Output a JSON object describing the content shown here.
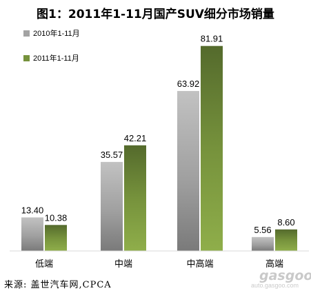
{
  "chart_data": {
    "type": "bar",
    "title": "图1：2011年1-11月国产SUV细分市场销量",
    "categories": [
      "低端",
      "中端",
      "中高端",
      "高端"
    ],
    "series": [
      {
        "name": "2010年1-11月",
        "values": [
          13.4,
          35.57,
          63.92,
          5.56
        ],
        "color": "#a3a3a3"
      },
      {
        "name": "2011年1-11月",
        "values": [
          10.38,
          42.21,
          81.91,
          8.6
        ],
        "color": "#76923c"
      }
    ],
    "value_labels": [
      [
        "13.40",
        "35.57",
        "63.92",
        "5.56"
      ],
      [
        "10.38",
        "42.21",
        "81.91",
        "8.60"
      ]
    ],
    "ylim": [
      0,
      85
    ],
    "grid": false,
    "legend_position": "top-left"
  },
  "source": "来源: 盖世汽车网,CPCA",
  "watermark": {
    "logo": "gasgoo",
    "url": "auto.gasgoo.com"
  }
}
